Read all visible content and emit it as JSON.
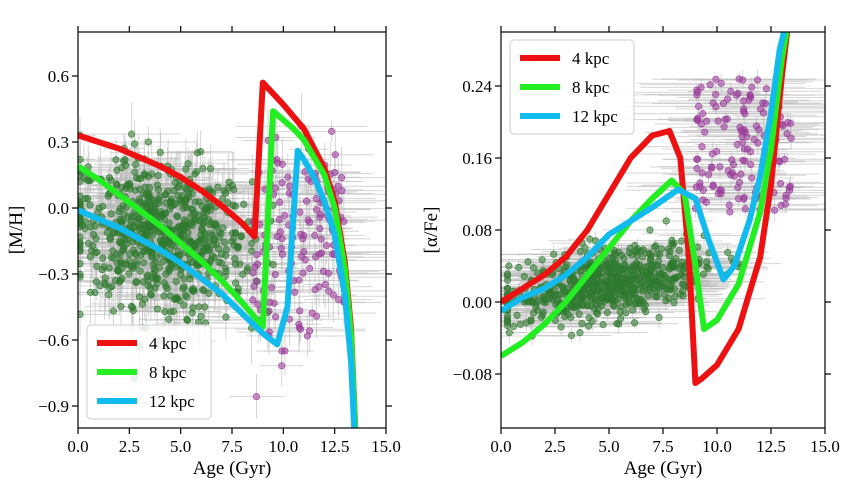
{
  "chart_data": [
    {
      "type": "line",
      "panel": "left",
      "title": "",
      "xlabel": "Age (Gyr)",
      "ylabel": "[M/H]",
      "xlim": [
        0,
        15
      ],
      "ylim": [
        -1.0,
        0.8
      ],
      "xticks": [
        0,
        2.5,
        5,
        7.5,
        10,
        12.5,
        15
      ],
      "xtick_labels": [
        "0.0",
        "2.5",
        "5.0",
        "7.5",
        "10.0",
        "12.5",
        "15.0"
      ],
      "yticks": [
        -0.9,
        -0.6,
        -0.3,
        0.0,
        0.3,
        0.6
      ],
      "ytick_labels": [
        "−0.9",
        "−0.6",
        "−0.3",
        "0.0",
        "0.3",
        "0.6"
      ],
      "grid": false,
      "legend_position": "bottom-left",
      "series": [
        {
          "name": "4 kpc",
          "color": "#ee1111",
          "x": [
            0,
            1,
            2,
            3,
            4,
            5,
            6,
            7,
            8,
            8.6,
            9.0,
            9.5,
            10,
            11,
            12,
            12.5,
            13,
            13.3,
            13.5
          ],
          "y": [
            0.33,
            0.3,
            0.27,
            0.23,
            0.19,
            0.14,
            0.08,
            0.01,
            -0.07,
            -0.13,
            0.57,
            0.52,
            0.47,
            0.36,
            0.18,
            0.03,
            -0.25,
            -0.55,
            -1.0
          ]
        },
        {
          "name": "8 kpc",
          "color": "#22ee22",
          "x": [
            0,
            1,
            2,
            3,
            4,
            5,
            6,
            7,
            8,
            9.0,
            9.5,
            10,
            10.5,
            11,
            12,
            12.5,
            13,
            13.3,
            13.5
          ],
          "y": [
            0.19,
            0.13,
            0.06,
            -0.01,
            -0.08,
            -0.16,
            -0.24,
            -0.33,
            -0.43,
            -0.54,
            0.44,
            0.4,
            0.36,
            0.31,
            0.15,
            0.0,
            -0.28,
            -0.58,
            -1.0
          ]
        },
        {
          "name": "12 kpc",
          "color": "#11bbee",
          "x": [
            0,
            1,
            2,
            3,
            4,
            5,
            6,
            7,
            8,
            9,
            9.7,
            10.2,
            10.7,
            11,
            11.5,
            12,
            12.5,
            13,
            13.3,
            13.45
          ],
          "y": [
            -0.01,
            -0.05,
            -0.09,
            -0.14,
            -0.19,
            -0.25,
            -0.32,
            -0.39,
            -0.48,
            -0.57,
            -0.62,
            -0.45,
            0.26,
            0.22,
            0.14,
            0.03,
            -0.12,
            -0.4,
            -0.7,
            -1.0
          ]
        }
      ]
    },
    {
      "type": "line",
      "panel": "right",
      "title": "",
      "xlabel": "Age (Gyr)",
      "ylabel": "[α/Fe]",
      "xlim": [
        0,
        15
      ],
      "ylim": [
        -0.14,
        0.3
      ],
      "xticks": [
        0,
        2.5,
        5,
        7.5,
        10,
        12.5,
        15
      ],
      "xtick_labels": [
        "0.0",
        "2.5",
        "5.0",
        "7.5",
        "10.0",
        "12.5",
        "15.0"
      ],
      "yticks": [
        -0.08,
        0.0,
        0.08,
        0.16,
        0.24
      ],
      "ytick_labels": [
        "−0.08",
        "0.00",
        "0.08",
        "0.16",
        "0.24"
      ],
      "grid": false,
      "legend_position": "top-left",
      "series": [
        {
          "name": "4 kpc",
          "color": "#ee1111",
          "x": [
            0,
            1,
            2,
            3,
            4,
            5,
            6,
            7,
            7.8,
            8.3,
            8.7,
            9.0,
            9.3,
            10,
            11,
            12,
            12.5,
            13.0,
            13.3
          ],
          "y": [
            0.0,
            0.015,
            0.03,
            0.05,
            0.08,
            0.12,
            0.16,
            0.185,
            0.19,
            0.16,
            0.05,
            -0.09,
            -0.085,
            -0.07,
            -0.03,
            0.05,
            0.13,
            0.25,
            0.31
          ]
        },
        {
          "name": "8 kpc",
          "color": "#22ee22",
          "x": [
            0,
            1,
            2,
            3,
            4,
            5,
            6,
            7,
            7.9,
            8.5,
            9.0,
            9.4,
            10,
            11,
            12,
            12.5,
            13.0,
            13.3
          ],
          "y": [
            -0.06,
            -0.045,
            -0.025,
            0.0,
            0.03,
            0.06,
            0.09,
            0.115,
            0.135,
            0.12,
            0.04,
            -0.03,
            -0.02,
            0.02,
            0.1,
            0.17,
            0.27,
            0.31
          ]
        },
        {
          "name": "12 kpc",
          "color": "#11bbee",
          "x": [
            0,
            1,
            2,
            3,
            4,
            5,
            6,
            7,
            8.2,
            9.0,
            9.6,
            10.3,
            10.8,
            11.5,
            12,
            12.5,
            12.9,
            13.2
          ],
          "y": [
            -0.01,
            0.005,
            0.015,
            0.03,
            0.05,
            0.075,
            0.09,
            0.105,
            0.125,
            0.115,
            0.07,
            0.025,
            0.04,
            0.09,
            0.14,
            0.21,
            0.28,
            0.31
          ]
        }
      ]
    }
  ]
}
